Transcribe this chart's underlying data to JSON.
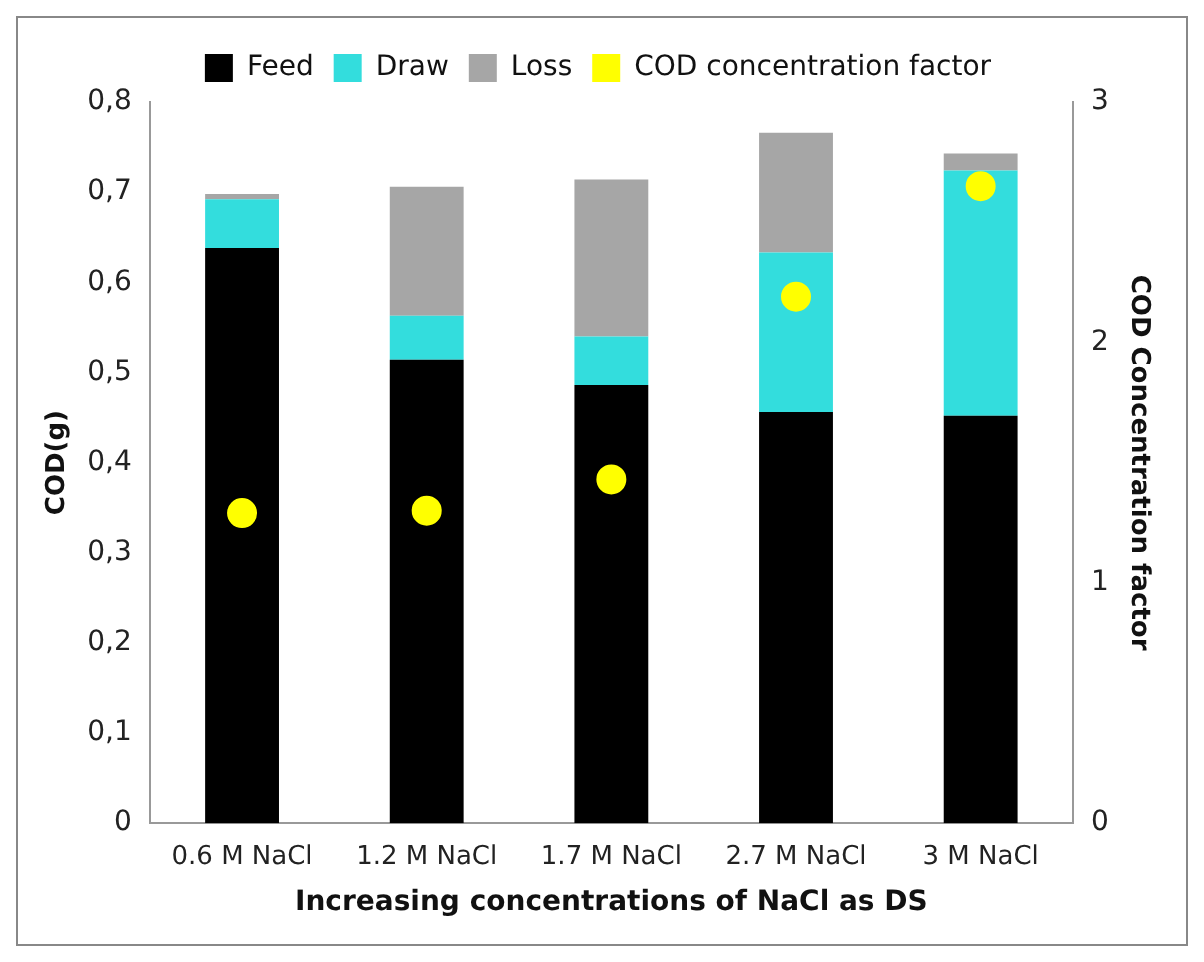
{
  "chart_data": {
    "type": "bar",
    "stacked": true,
    "xlabel": "Increasing concentrations of NaCl as DS",
    "ylabel": "COD(g)",
    "y2label": "COD Concentration factor",
    "categories": [
      "0.6 M NaCl",
      "1.2 M NaCl",
      "1.7 M NaCl",
      "2.7 M NaCl",
      "3 M NaCl"
    ],
    "series": [
      {
        "name": "Feed",
        "color": "#000000",
        "values": [
          0.638,
          0.514,
          0.486,
          0.456,
          0.452
        ]
      },
      {
        "name": "Draw",
        "color": "#33dddd",
        "values": [
          0.054,
          0.049,
          0.054,
          0.177,
          0.272
        ]
      },
      {
        "name": "Loss",
        "color": "#a6a6a6",
        "values": [
          0.006,
          0.143,
          0.174,
          0.133,
          0.019
        ]
      },
      {
        "name": "COD concentration factor",
        "type": "scatter",
        "axis": "y2",
        "color": "#ffff00",
        "marker": "circle",
        "values": [
          1.29,
          1.3,
          1.43,
          2.19,
          2.65
        ]
      }
    ],
    "ylim": [
      0,
      0.8
    ],
    "yticks": [
      0,
      {
        "value": 0.1,
        "label": "0,1"
      },
      {
        "value": 0.2,
        "label": "0,2"
      },
      {
        "value": 0.3,
        "label": "0,3"
      },
      {
        "value": 0.4,
        "label": "0,4"
      },
      {
        "value": 0.5,
        "label": "0,5"
      },
      {
        "value": 0.6,
        "label": "0,6"
      },
      {
        "value": 0.7,
        "label": "0,7"
      },
      {
        "value": 0.8,
        "label": "0,8"
      }
    ],
    "y2lim": [
      0,
      3
    ],
    "y2ticks": [
      0,
      1,
      2,
      3
    ],
    "grid": false,
    "legend": "top"
  }
}
